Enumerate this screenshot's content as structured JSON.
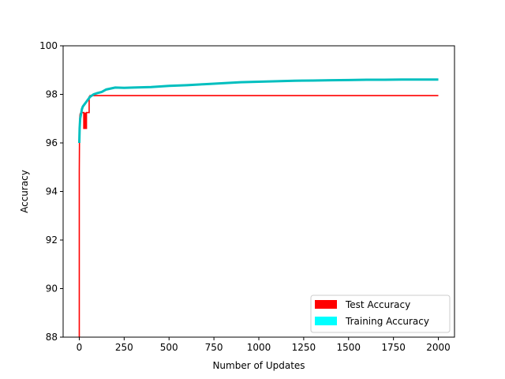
{
  "chart_data": {
    "type": "line",
    "xlabel": "Number of Updates",
    "ylabel": "Accuracy",
    "xlim": [
      -90,
      2090
    ],
    "ylim": [
      88,
      100
    ],
    "xticks": [
      0,
      250,
      500,
      750,
      1000,
      1250,
      1500,
      1750,
      2000
    ],
    "yticks": [
      88,
      90,
      92,
      94,
      96,
      98,
      100
    ],
    "grid": false,
    "legend_position": "lower-right",
    "series": [
      {
        "name": "Test Accuracy",
        "color": "#ff0000",
        "style": "step",
        "x": [
          0,
          0,
          1,
          2,
          3,
          5,
          10,
          20,
          25,
          25,
          40,
          40,
          55,
          55,
          60,
          60,
          2000
        ],
        "y": [
          88,
          94.8,
          96.0,
          96.8,
          97.1,
          97.2,
          97.25,
          97.25,
          97.25,
          96.6,
          96.6,
          97.25,
          97.25,
          97.9,
          97.9,
          97.95,
          97.95
        ]
      },
      {
        "name": "Training Accuracy",
        "color": "#00bfbf",
        "style": "line",
        "x": [
          0,
          2,
          5,
          10,
          15,
          20,
          30,
          40,
          50,
          60,
          80,
          100,
          125,
          150,
          200,
          250,
          300,
          400,
          500,
          600,
          700,
          800,
          900,
          1000,
          1100,
          1200,
          1300,
          1400,
          1500,
          1600,
          1700,
          1800,
          1900,
          2000
        ],
        "y": [
          96.0,
          96.6,
          97.0,
          97.2,
          97.4,
          97.5,
          97.6,
          97.7,
          97.8,
          97.9,
          98.0,
          98.05,
          98.1,
          98.2,
          98.28,
          98.27,
          98.28,
          98.3,
          98.35,
          98.38,
          98.42,
          98.46,
          98.5,
          98.52,
          98.54,
          98.56,
          98.57,
          98.58,
          98.59,
          98.6,
          98.6,
          98.61,
          98.61,
          98.61
        ]
      }
    ]
  }
}
